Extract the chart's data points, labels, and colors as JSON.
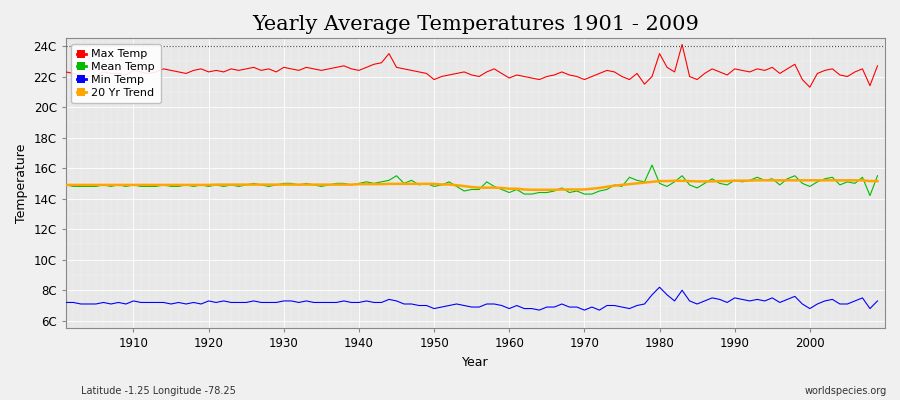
{
  "title": "Yearly Average Temperatures 1901 - 2009",
  "xlabel": "Year",
  "ylabel": "Temperature",
  "bottom_left": "Latitude -1.25 Longitude -78.25",
  "bottom_right": "worldspecies.org",
  "years": [
    1901,
    1902,
    1903,
    1904,
    1905,
    1906,
    1907,
    1908,
    1909,
    1910,
    1911,
    1912,
    1913,
    1914,
    1915,
    1916,
    1917,
    1918,
    1919,
    1920,
    1921,
    1922,
    1923,
    1924,
    1925,
    1926,
    1927,
    1928,
    1929,
    1930,
    1931,
    1932,
    1933,
    1934,
    1935,
    1936,
    1937,
    1938,
    1939,
    1940,
    1941,
    1942,
    1943,
    1944,
    1945,
    1946,
    1947,
    1948,
    1949,
    1950,
    1951,
    1952,
    1953,
    1954,
    1955,
    1956,
    1957,
    1958,
    1959,
    1960,
    1961,
    1962,
    1963,
    1964,
    1965,
    1966,
    1967,
    1968,
    1969,
    1970,
    1971,
    1972,
    1973,
    1974,
    1975,
    1976,
    1977,
    1978,
    1979,
    1980,
    1981,
    1982,
    1983,
    1984,
    1985,
    1986,
    1987,
    1988,
    1989,
    1990,
    1991,
    1992,
    1993,
    1994,
    1995,
    1996,
    1997,
    1998,
    1999,
    2000,
    2001,
    2002,
    2003,
    2004,
    2005,
    2006,
    2007,
    2008,
    2009
  ],
  "max_temp": [
    22.3,
    22.2,
    22.1,
    22.0,
    22.1,
    22.3,
    22.2,
    22.2,
    22.1,
    22.4,
    22.3,
    22.2,
    22.3,
    22.5,
    22.4,
    22.3,
    22.2,
    22.4,
    22.5,
    22.3,
    22.4,
    22.3,
    22.5,
    22.4,
    22.5,
    22.6,
    22.4,
    22.5,
    22.3,
    22.6,
    22.5,
    22.4,
    22.6,
    22.5,
    22.4,
    22.5,
    22.6,
    22.7,
    22.5,
    22.4,
    22.6,
    22.8,
    22.9,
    23.5,
    22.6,
    22.5,
    22.4,
    22.3,
    22.2,
    21.8,
    22.0,
    22.1,
    22.2,
    22.3,
    22.1,
    22.0,
    22.3,
    22.5,
    22.2,
    21.9,
    22.1,
    22.0,
    21.9,
    21.8,
    22.0,
    22.1,
    22.3,
    22.1,
    22.0,
    21.8,
    22.0,
    22.2,
    22.4,
    22.3,
    22.0,
    21.8,
    22.2,
    21.5,
    22.0,
    23.5,
    22.6,
    22.3,
    24.1,
    22.0,
    21.8,
    22.2,
    22.5,
    22.3,
    22.1,
    22.5,
    22.4,
    22.3,
    22.5,
    22.4,
    22.6,
    22.2,
    22.5,
    22.8,
    21.8,
    21.3,
    22.2,
    22.4,
    22.5,
    22.1,
    22.0,
    22.3,
    22.5,
    21.4,
    22.7
  ],
  "mean_temp": [
    14.9,
    14.8,
    14.8,
    14.8,
    14.8,
    14.9,
    14.8,
    14.9,
    14.8,
    14.9,
    14.8,
    14.8,
    14.8,
    14.9,
    14.8,
    14.8,
    14.9,
    14.8,
    14.9,
    14.8,
    14.9,
    14.8,
    14.9,
    14.8,
    14.9,
    15.0,
    14.9,
    14.8,
    14.9,
    15.0,
    15.0,
    14.9,
    15.0,
    14.9,
    14.8,
    14.9,
    15.0,
    15.0,
    14.9,
    15.0,
    15.1,
    15.0,
    15.1,
    15.2,
    15.5,
    15.0,
    15.2,
    14.9,
    15.0,
    14.8,
    14.9,
    15.1,
    14.8,
    14.5,
    14.6,
    14.6,
    15.1,
    14.8,
    14.6,
    14.4,
    14.6,
    14.3,
    14.3,
    14.4,
    14.4,
    14.5,
    14.7,
    14.4,
    14.5,
    14.3,
    14.3,
    14.5,
    14.6,
    14.9,
    14.8,
    15.4,
    15.2,
    15.1,
    16.2,
    15.0,
    14.8,
    15.1,
    15.5,
    14.9,
    14.7,
    15.0,
    15.3,
    15.0,
    14.9,
    15.2,
    15.1,
    15.2,
    15.4,
    15.2,
    15.3,
    14.9,
    15.3,
    15.5,
    15.0,
    14.8,
    15.1,
    15.3,
    15.4,
    14.9,
    15.1,
    15.0,
    15.4,
    14.2,
    15.5
  ],
  "min_temp": [
    7.2,
    7.2,
    7.1,
    7.1,
    7.1,
    7.2,
    7.1,
    7.2,
    7.1,
    7.3,
    7.2,
    7.2,
    7.2,
    7.2,
    7.1,
    7.2,
    7.1,
    7.2,
    7.1,
    7.3,
    7.2,
    7.3,
    7.2,
    7.2,
    7.2,
    7.3,
    7.2,
    7.2,
    7.2,
    7.3,
    7.3,
    7.2,
    7.3,
    7.2,
    7.2,
    7.2,
    7.2,
    7.3,
    7.2,
    7.2,
    7.3,
    7.2,
    7.2,
    7.4,
    7.3,
    7.1,
    7.1,
    7.0,
    7.0,
    6.8,
    6.9,
    7.0,
    7.1,
    7.0,
    6.9,
    6.9,
    7.1,
    7.1,
    7.0,
    6.8,
    7.0,
    6.8,
    6.8,
    6.7,
    6.9,
    6.9,
    7.1,
    6.9,
    6.9,
    6.7,
    6.9,
    6.7,
    7.0,
    7.0,
    6.9,
    6.8,
    7.0,
    7.1,
    7.7,
    8.2,
    7.7,
    7.3,
    8.0,
    7.3,
    7.1,
    7.3,
    7.5,
    7.4,
    7.2,
    7.5,
    7.4,
    7.3,
    7.4,
    7.3,
    7.5,
    7.2,
    7.4,
    7.6,
    7.1,
    6.8,
    7.1,
    7.3,
    7.4,
    7.1,
    7.1,
    7.3,
    7.5,
    6.8,
    7.3
  ],
  "trend_20yr": [
    14.9,
    14.9,
    14.9,
    14.9,
    14.9,
    14.9,
    14.9,
    14.9,
    14.9,
    14.9,
    14.9,
    14.9,
    14.9,
    14.9,
    14.9,
    14.9,
    14.9,
    14.9,
    14.9,
    14.9,
    14.92,
    14.92,
    14.92,
    14.92,
    14.92,
    14.92,
    14.92,
    14.92,
    14.92,
    14.92,
    14.92,
    14.92,
    14.92,
    14.92,
    14.92,
    14.92,
    14.92,
    14.92,
    14.92,
    14.95,
    14.95,
    14.95,
    14.95,
    14.97,
    14.97,
    14.97,
    14.97,
    14.97,
    14.97,
    14.97,
    14.93,
    14.93,
    14.88,
    14.82,
    14.76,
    14.72,
    14.72,
    14.72,
    14.7,
    14.65,
    14.65,
    14.6,
    14.58,
    14.58,
    14.58,
    14.58,
    14.6,
    14.6,
    14.6,
    14.6,
    14.65,
    14.7,
    14.78,
    14.85,
    14.9,
    14.95,
    15.0,
    15.05,
    15.1,
    15.15,
    15.15,
    15.17,
    15.17,
    15.15,
    15.13,
    15.13,
    15.13,
    15.15,
    15.15,
    15.18,
    15.18,
    15.18,
    15.2,
    15.2,
    15.2,
    15.2,
    15.2,
    15.2,
    15.2,
    15.2,
    15.2,
    15.2,
    15.2,
    15.2,
    15.2,
    15.2,
    15.2,
    15.15,
    15.15
  ],
  "yticks": [
    6,
    8,
    10,
    12,
    14,
    16,
    18,
    20,
    22,
    24
  ],
  "ytick_labels": [
    "6C",
    "8C",
    "10C",
    "12C",
    "14C",
    "16C",
    "18C",
    "20C",
    "22C",
    "24C"
  ],
  "ymin": 5.5,
  "ymax": 24.5,
  "xticks": [
    1910,
    1920,
    1930,
    1940,
    1950,
    1960,
    1970,
    1980,
    1990,
    2000
  ],
  "bg_color": "#f0f0f0",
  "plot_bg_color": "#e8e8e8",
  "grid_color": "#ffffff",
  "max_color": "#ff0000",
  "mean_color": "#00bb00",
  "min_color": "#0000ff",
  "trend_color": "#ffa500",
  "dotted_line_y": 24,
  "title_fontsize": 15,
  "axis_label_fontsize": 9,
  "tick_label_fontsize": 8.5
}
